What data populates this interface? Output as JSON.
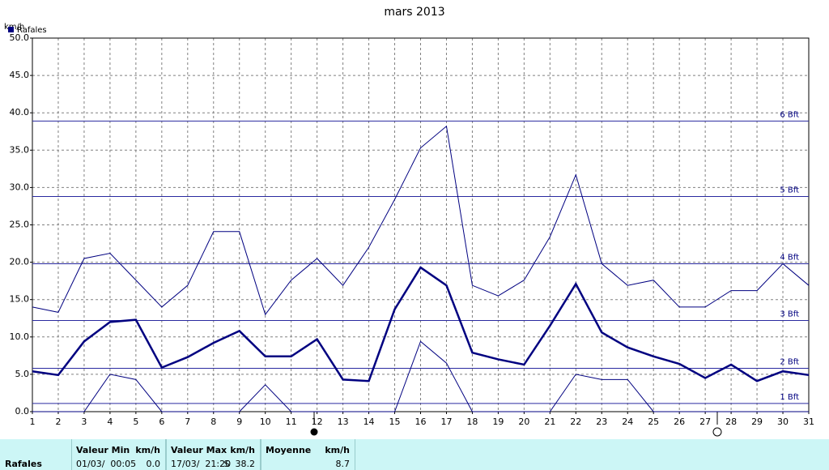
{
  "chart_data": {
    "type": "line",
    "title": "mars 2013",
    "y_label": "km/h",
    "x": [
      1,
      2,
      3,
      4,
      5,
      6,
      7,
      8,
      9,
      10,
      11,
      12,
      13,
      14,
      15,
      16,
      17,
      18,
      19,
      20,
      21,
      22,
      23,
      24,
      25,
      26,
      27,
      28,
      29,
      30,
      31
    ],
    "xlim": [
      1,
      31
    ],
    "xticks": [
      1,
      2,
      3,
      4,
      5,
      6,
      7,
      8,
      9,
      10,
      11,
      12,
      13,
      14,
      15,
      16,
      17,
      18,
      19,
      20,
      21,
      22,
      23,
      24,
      25,
      26,
      27,
      28,
      29,
      30,
      31
    ],
    "ylim": [
      0,
      50
    ],
    "yticks": [
      {
        "value": 0,
        "label": "0.0"
      },
      {
        "value": 5,
        "label": "5.0"
      },
      {
        "value": 10,
        "label": "10.0"
      },
      {
        "value": 15,
        "label": "15.0"
      },
      {
        "value": 20,
        "label": "20.0"
      },
      {
        "value": 25,
        "label": "25.0"
      },
      {
        "value": 30,
        "label": "30.0"
      },
      {
        "value": 35,
        "label": "35.0"
      },
      {
        "value": 40,
        "label": "40.0"
      },
      {
        "value": 45,
        "label": "45.0"
      },
      {
        "value": 50,
        "label": "50.0"
      }
    ],
    "grid": true,
    "legend": {
      "name": "Rafales",
      "color": "#000080",
      "position": "top-left"
    },
    "series": [
      {
        "color": "#000080",
        "width": 1,
        "values": [
          14.0,
          13.3,
          20.5,
          21.2,
          17.6,
          14.0,
          16.9,
          24.1,
          24.1,
          13.0,
          17.6,
          20.5,
          16.9,
          22.0,
          28.4,
          35.3,
          38.2,
          16.9,
          15.5,
          17.6,
          23.4,
          31.7,
          19.8,
          16.9,
          17.6,
          14.0,
          14.0,
          16.2,
          16.2,
          19.8,
          16.9
        ]
      },
      {
        "color": "#000080",
        "width": 2.5,
        "values": [
          5.4,
          4.9,
          9.4,
          12.0,
          12.3,
          5.9,
          7.3,
          9.2,
          10.8,
          7.4,
          7.4,
          9.7,
          4.3,
          4.1,
          13.7,
          19.3,
          16.9,
          7.9,
          7.0,
          6.3,
          11.5,
          17.1,
          10.6,
          8.6,
          7.4,
          6.4,
          4.5,
          6.3,
          4.1,
          5.4,
          4.9
        ]
      },
      {
        "color": "#000080",
        "width": 1,
        "values": [
          0,
          0,
          0,
          5.0,
          4.3,
          0,
          0,
          0,
          0,
          3.6,
          0,
          0,
          0,
          0,
          0,
          9.4,
          6.5,
          0,
          0,
          0,
          0,
          5.0,
          4.3,
          4.3,
          0,
          0,
          0,
          0,
          0,
          0,
          0
        ]
      }
    ],
    "beaufort": [
      {
        "label": "1 Bft",
        "value": 1.1
      },
      {
        "label": "2 Bft",
        "value": 5.8
      },
      {
        "label": "3 Bft",
        "value": 12.2
      },
      {
        "label": "4 Bft",
        "value": 19.8
      },
      {
        "label": "5 Bft",
        "value": 28.8
      },
      {
        "label": "6 Bft",
        "value": 38.9
      }
    ]
  },
  "table": {
    "row_label": "Rafales",
    "columns": [
      {
        "header": "Valeur Min",
        "unit": "km/h",
        "date": "01/03/  00:05",
        "value": "0.0"
      },
      {
        "header": "Valeur Max",
        "unit": "km/h",
        "date": "17/03/  21:20",
        "value": "S  38.2"
      },
      {
        "header": "Moyenne",
        "unit": "km/h",
        "date": "",
        "value": "8.7"
      }
    ]
  }
}
